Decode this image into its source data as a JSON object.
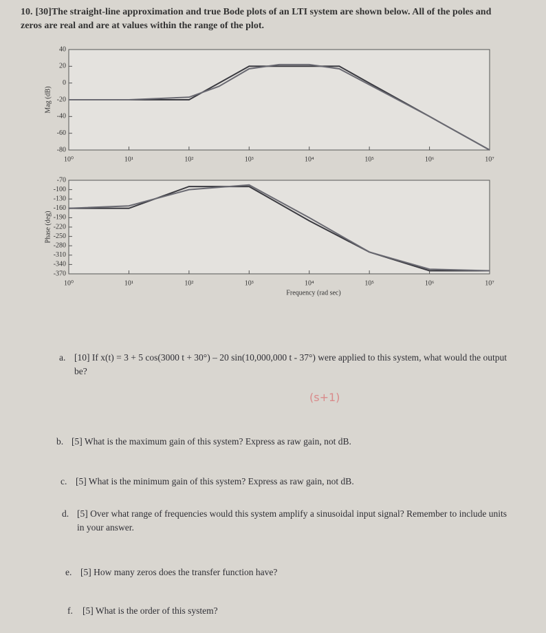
{
  "header": {
    "number": "10.",
    "text": "[30]The straight-line approximation and true Bode plots of an LTI system are shown below. All of the poles and zeros are real and are at values within the range of the plot."
  },
  "chart_data": [
    {
      "type": "line",
      "ylabel": "Mag (dB)",
      "xscale": "log",
      "x": [
        1,
        10,
        100,
        316,
        1000,
        3162,
        10000,
        31623,
        100000,
        1000000,
        10000000
      ],
      "xlim": [
        1,
        10000000
      ],
      "xticks": [
        {
          "value": 1,
          "label": "10⁰"
        },
        {
          "value": 10,
          "label": "10¹"
        },
        {
          "value": 100,
          "label": "10²"
        },
        {
          "value": 1000,
          "label": "10³"
        },
        {
          "value": 10000,
          "label": "10⁴"
        },
        {
          "value": 100000,
          "label": "10⁵"
        },
        {
          "value": 1000000,
          "label": "10⁶"
        },
        {
          "value": 10000000,
          "label": "10⁷"
        }
      ],
      "ylim": [
        -80,
        40
      ],
      "yticks": [
        40,
        20,
        0,
        -20,
        -40,
        -60,
        -80
      ],
      "series": [
        {
          "color": "#3a3a40",
          "values": [
            -20,
            -20,
            -20,
            0,
            20,
            20,
            20,
            20,
            0,
            -40,
            -80
          ]
        },
        {
          "color": "#6a6a72",
          "values": [
            -20,
            -20,
            -17,
            -4,
            17,
            22,
            22,
            17,
            -2,
            -40,
            -80
          ]
        }
      ]
    },
    {
      "type": "line",
      "ylabel": "Phase (deg)",
      "xlabel": "Frequency (rad sec)",
      "xscale": "log",
      "x": [
        1,
        10,
        100,
        1000,
        10000,
        100000,
        1000000,
        10000000
      ],
      "xlim": [
        1,
        10000000
      ],
      "xticks": [
        {
          "value": 1,
          "label": "10⁰"
        },
        {
          "value": 10,
          "label": "10¹"
        },
        {
          "value": 100,
          "label": "10²"
        },
        {
          "value": 1000,
          "label": "10³"
        },
        {
          "value": 10000,
          "label": "10⁴"
        },
        {
          "value": 100000,
          "label": "10⁵"
        },
        {
          "value": 1000000,
          "label": "10⁶"
        },
        {
          "value": 10000000,
          "label": "10⁷"
        }
      ],
      "ylim": [
        -370,
        -70
      ],
      "yticks": [
        -70,
        -100,
        -130,
        -160,
        -190,
        -220,
        -250,
        -280,
        -310,
        -340,
        -370
      ],
      "series": [
        {
          "color": "#3a3a40",
          "values": [
            -160,
            -160,
            -90,
            -90,
            -200,
            -300,
            -360,
            -360
          ]
        },
        {
          "color": "#6a6a72",
          "values": [
            -160,
            -152,
            -100,
            -85,
            -190,
            -300,
            -355,
            -360
          ]
        }
      ]
    }
  ],
  "questions": [
    {
      "letter": "a.",
      "text": "[10] If x(t) = 3 + 5 cos(3000 t + 30°) – 20 sin(10,000,000 t - 37°) were applied to this system, what would the output be?"
    },
    {
      "letter": "b.",
      "text": "[5] What is the maximum gain of this system? Express as raw gain, not dB."
    },
    {
      "letter": "c.",
      "text": "[5] What is the minimum gain of this system? Express as raw gain, not dB."
    },
    {
      "letter": "d.",
      "text": "[5] Over what range of frequencies would this system amplify a sinusoidal input signal? Remember to include units in your answer."
    },
    {
      "letter": "e.",
      "text": "[5] How many zeros does the transfer function have?"
    },
    {
      "letter": "f.",
      "text": "[5] What is the order of this system?"
    }
  ],
  "handwriting": "(s+1)"
}
